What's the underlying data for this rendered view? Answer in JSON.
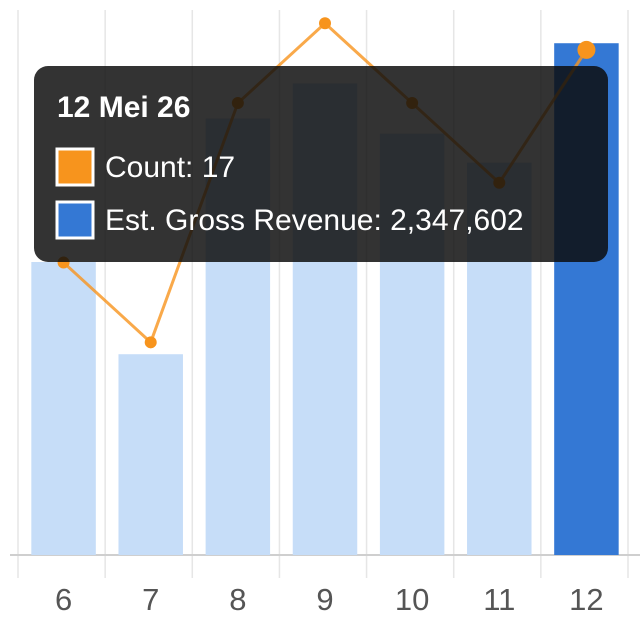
{
  "chart_data": {
    "type": "bar_line",
    "categories": [
      "6",
      "7",
      "8",
      "9",
      "10",
      "11",
      "12"
    ],
    "series": [
      {
        "type": "bar",
        "color": "#3478d4",
        "inactive_color": "#c6ddf8",
        "values": [
          1344000,
          921000,
          2002000,
          2163000,
          1933000,
          1800000,
          2347602
        ]
      },
      {
        "type": "line",
        "axis": "y2",
        "color": "#f7941d",
        "values": [
          9,
          6,
          15,
          18,
          15,
          12,
          17
        ]
      }
    ],
    "selected_index": 6,
    "ylim": [
      0,
      2500000
    ],
    "y2lim": [
      -2,
      18.5
    ],
    "tooltip": {
      "title": "12 Mei 26",
      "items": [
        {
          "text": "Count: 17",
          "color": "#f7941d"
        },
        {
          "text": "Est. Gross Revenue: 2,347,602",
          "color": "#3478d4"
        }
      ]
    }
  }
}
